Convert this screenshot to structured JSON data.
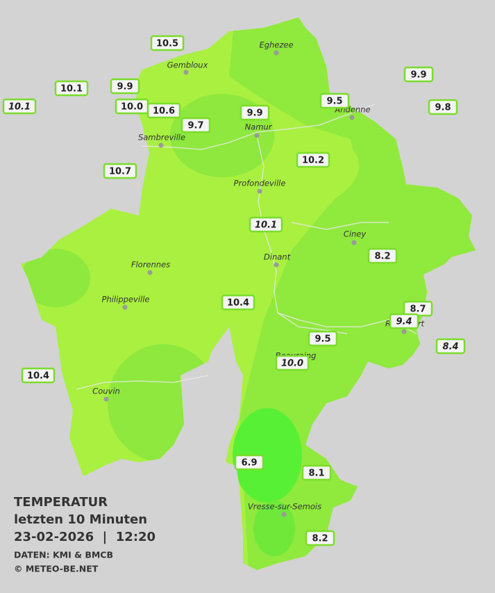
{
  "legend": {
    "title": "TEMPERATUR",
    "period": "letzten 10 Minuten",
    "datetime": "23-02-2026  |  12:20",
    "source": "DATEN: KMI & BMCB",
    "copyright": "© METEO-BE.NET"
  },
  "cities": [
    "Eghezee",
    "Gembloux",
    "Andenne",
    "Namur",
    "Sambreville",
    "Profondeville",
    "Ciney",
    "Dinant",
    "Florennes",
    "Philippeville",
    "Rochefort",
    "Beauraing",
    "Couvin",
    "Vresse-sur-Semois"
  ],
  "stations": [
    "10.5",
    "10.1",
    "9.9",
    "10.1",
    "10.0",
    "10.6",
    "9.7",
    "9.9",
    "9.5",
    "9.9",
    "9.8",
    "10.7",
    "10.2",
    "10.1",
    "8.2",
    "10.4",
    "8.7",
    "9.4",
    "8.4",
    "9.5",
    "10.0",
    "10.4",
    "6.9",
    "8.1",
    "8.2"
  ]
}
